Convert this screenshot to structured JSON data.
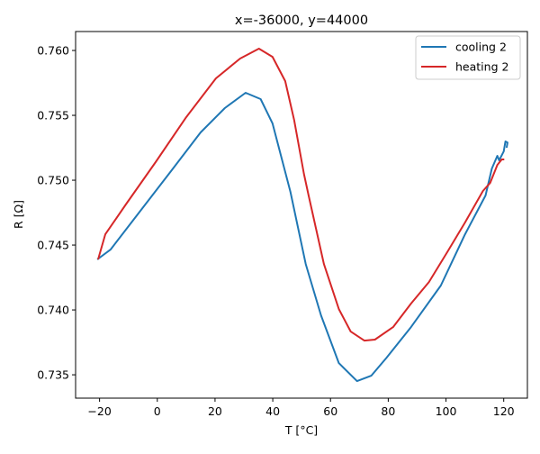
{
  "chart_data": {
    "type": "line",
    "title": "x=-36000, y=44000",
    "xlabel": "T [°C]",
    "ylabel": "R [Ω]",
    "xlim": [
      -28.3,
      128.2
    ],
    "ylim": [
      0.7332,
      0.76146
    ],
    "xticks": [
      -20,
      0,
      20,
      40,
      60,
      80,
      100,
      120
    ],
    "xtick_labels": [
      "−20",
      "0",
      "20",
      "40",
      "60",
      "80",
      "100",
      "120"
    ],
    "yticks": [
      0.735,
      0.74,
      0.745,
      0.75,
      0.755,
      0.76
    ],
    "ytick_labels": [
      "0.735",
      "0.740",
      "0.745",
      "0.750",
      "0.755",
      "0.760"
    ],
    "grid": false,
    "legend_position": "top-right",
    "series": [
      {
        "name": "cooling 2",
        "color": "#1f77b4",
        "x": [
          -20.8,
          -16.2,
          -5.6,
          4.7,
          15.0,
          23.4,
          30.6,
          35.8,
          39.9,
          46.1,
          51.4,
          56.7,
          62.9,
          69.2,
          74.1,
          79.4,
          87.9,
          98.2,
          106.6,
          113.7,
          115.9,
          117.8,
          118.4,
          120.0,
          120.6,
          121.3,
          121.0
        ],
        "y": [
          0.74389,
          0.74465,
          0.74771,
          0.75069,
          0.75368,
          0.75556,
          0.75674,
          0.75625,
          0.75438,
          0.7491,
          0.74354,
          0.73958,
          0.7359,
          0.73451,
          0.73493,
          0.73632,
          0.73868,
          0.74188,
          0.74583,
          0.74882,
          0.7509,
          0.75188,
          0.75153,
          0.75222,
          0.75299,
          0.7529,
          0.7525
        ]
      },
      {
        "name": "heating 2",
        "color": "#d62728",
        "x": [
          -20.5,
          -18.0,
          -10.9,
          -0.6,
          10.0,
          20.3,
          28.7,
          35.2,
          39.9,
          44.3,
          47.4,
          50.8,
          52.4,
          57.7,
          62.9,
          67.0,
          71.7,
          75.4,
          81.7,
          87.9,
          94.1,
          100.4,
          106.6,
          112.8,
          115.3,
          117.8,
          119.3,
          120.2
        ],
        "y": [
          0.74389,
          0.74583,
          0.74813,
          0.75139,
          0.75486,
          0.75785,
          0.75938,
          0.76014,
          0.75951,
          0.75764,
          0.75465,
          0.75049,
          0.74882,
          0.74354,
          0.74007,
          0.73833,
          0.73764,
          0.73771,
          0.73868,
          0.74049,
          0.74215,
          0.74444,
          0.74674,
          0.74917,
          0.74979,
          0.75118,
          0.7516,
          0.7516
        ]
      }
    ]
  }
}
